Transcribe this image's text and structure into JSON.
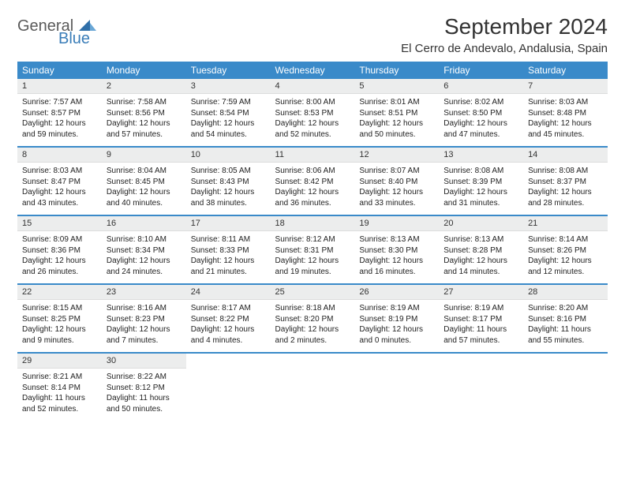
{
  "brand": {
    "part1": "General",
    "part2": "Blue"
  },
  "title": "September 2024",
  "location": "El Cerro de Andevalo, Andalusia, Spain",
  "colors": {
    "header_bg": "#3a8ac9",
    "header_text": "#ffffff",
    "daynum_bg": "#eceded",
    "separator": "#3a8ac9",
    "brand_gray": "#5a5a5a",
    "brand_blue": "#3a7db8",
    "body_text": "#222222"
  },
  "days_of_week": [
    "Sunday",
    "Monday",
    "Tuesday",
    "Wednesday",
    "Thursday",
    "Friday",
    "Saturday"
  ],
  "weeks": [
    [
      {
        "num": "1",
        "lines": [
          "Sunrise: 7:57 AM",
          "Sunset: 8:57 PM",
          "Daylight: 12 hours",
          "and 59 minutes."
        ]
      },
      {
        "num": "2",
        "lines": [
          "Sunrise: 7:58 AM",
          "Sunset: 8:56 PM",
          "Daylight: 12 hours",
          "and 57 minutes."
        ]
      },
      {
        "num": "3",
        "lines": [
          "Sunrise: 7:59 AM",
          "Sunset: 8:54 PM",
          "Daylight: 12 hours",
          "and 54 minutes."
        ]
      },
      {
        "num": "4",
        "lines": [
          "Sunrise: 8:00 AM",
          "Sunset: 8:53 PM",
          "Daylight: 12 hours",
          "and 52 minutes."
        ]
      },
      {
        "num": "5",
        "lines": [
          "Sunrise: 8:01 AM",
          "Sunset: 8:51 PM",
          "Daylight: 12 hours",
          "and 50 minutes."
        ]
      },
      {
        "num": "6",
        "lines": [
          "Sunrise: 8:02 AM",
          "Sunset: 8:50 PM",
          "Daylight: 12 hours",
          "and 47 minutes."
        ]
      },
      {
        "num": "7",
        "lines": [
          "Sunrise: 8:03 AM",
          "Sunset: 8:48 PM",
          "Daylight: 12 hours",
          "and 45 minutes."
        ]
      }
    ],
    [
      {
        "num": "8",
        "lines": [
          "Sunrise: 8:03 AM",
          "Sunset: 8:47 PM",
          "Daylight: 12 hours",
          "and 43 minutes."
        ]
      },
      {
        "num": "9",
        "lines": [
          "Sunrise: 8:04 AM",
          "Sunset: 8:45 PM",
          "Daylight: 12 hours",
          "and 40 minutes."
        ]
      },
      {
        "num": "10",
        "lines": [
          "Sunrise: 8:05 AM",
          "Sunset: 8:43 PM",
          "Daylight: 12 hours",
          "and 38 minutes."
        ]
      },
      {
        "num": "11",
        "lines": [
          "Sunrise: 8:06 AM",
          "Sunset: 8:42 PM",
          "Daylight: 12 hours",
          "and 36 minutes."
        ]
      },
      {
        "num": "12",
        "lines": [
          "Sunrise: 8:07 AM",
          "Sunset: 8:40 PM",
          "Daylight: 12 hours",
          "and 33 minutes."
        ]
      },
      {
        "num": "13",
        "lines": [
          "Sunrise: 8:08 AM",
          "Sunset: 8:39 PM",
          "Daylight: 12 hours",
          "and 31 minutes."
        ]
      },
      {
        "num": "14",
        "lines": [
          "Sunrise: 8:08 AM",
          "Sunset: 8:37 PM",
          "Daylight: 12 hours",
          "and 28 minutes."
        ]
      }
    ],
    [
      {
        "num": "15",
        "lines": [
          "Sunrise: 8:09 AM",
          "Sunset: 8:36 PM",
          "Daylight: 12 hours",
          "and 26 minutes."
        ]
      },
      {
        "num": "16",
        "lines": [
          "Sunrise: 8:10 AM",
          "Sunset: 8:34 PM",
          "Daylight: 12 hours",
          "and 24 minutes."
        ]
      },
      {
        "num": "17",
        "lines": [
          "Sunrise: 8:11 AM",
          "Sunset: 8:33 PM",
          "Daylight: 12 hours",
          "and 21 minutes."
        ]
      },
      {
        "num": "18",
        "lines": [
          "Sunrise: 8:12 AM",
          "Sunset: 8:31 PM",
          "Daylight: 12 hours",
          "and 19 minutes."
        ]
      },
      {
        "num": "19",
        "lines": [
          "Sunrise: 8:13 AM",
          "Sunset: 8:30 PM",
          "Daylight: 12 hours",
          "and 16 minutes."
        ]
      },
      {
        "num": "20",
        "lines": [
          "Sunrise: 8:13 AM",
          "Sunset: 8:28 PM",
          "Daylight: 12 hours",
          "and 14 minutes."
        ]
      },
      {
        "num": "21",
        "lines": [
          "Sunrise: 8:14 AM",
          "Sunset: 8:26 PM",
          "Daylight: 12 hours",
          "and 12 minutes."
        ]
      }
    ],
    [
      {
        "num": "22",
        "lines": [
          "Sunrise: 8:15 AM",
          "Sunset: 8:25 PM",
          "Daylight: 12 hours",
          "and 9 minutes."
        ]
      },
      {
        "num": "23",
        "lines": [
          "Sunrise: 8:16 AM",
          "Sunset: 8:23 PM",
          "Daylight: 12 hours",
          "and 7 minutes."
        ]
      },
      {
        "num": "24",
        "lines": [
          "Sunrise: 8:17 AM",
          "Sunset: 8:22 PM",
          "Daylight: 12 hours",
          "and 4 minutes."
        ]
      },
      {
        "num": "25",
        "lines": [
          "Sunrise: 8:18 AM",
          "Sunset: 8:20 PM",
          "Daylight: 12 hours",
          "and 2 minutes."
        ]
      },
      {
        "num": "26",
        "lines": [
          "Sunrise: 8:19 AM",
          "Sunset: 8:19 PM",
          "Daylight: 12 hours",
          "and 0 minutes."
        ]
      },
      {
        "num": "27",
        "lines": [
          "Sunrise: 8:19 AM",
          "Sunset: 8:17 PM",
          "Daylight: 11 hours",
          "and 57 minutes."
        ]
      },
      {
        "num": "28",
        "lines": [
          "Sunrise: 8:20 AM",
          "Sunset: 8:16 PM",
          "Daylight: 11 hours",
          "and 55 minutes."
        ]
      }
    ],
    [
      {
        "num": "29",
        "lines": [
          "Sunrise: 8:21 AM",
          "Sunset: 8:14 PM",
          "Daylight: 11 hours",
          "and 52 minutes."
        ]
      },
      {
        "num": "30",
        "lines": [
          "Sunrise: 8:22 AM",
          "Sunset: 8:12 PM",
          "Daylight: 11 hours",
          "and 50 minutes."
        ]
      },
      {
        "empty": true
      },
      {
        "empty": true
      },
      {
        "empty": true
      },
      {
        "empty": true
      },
      {
        "empty": true
      }
    ]
  ]
}
